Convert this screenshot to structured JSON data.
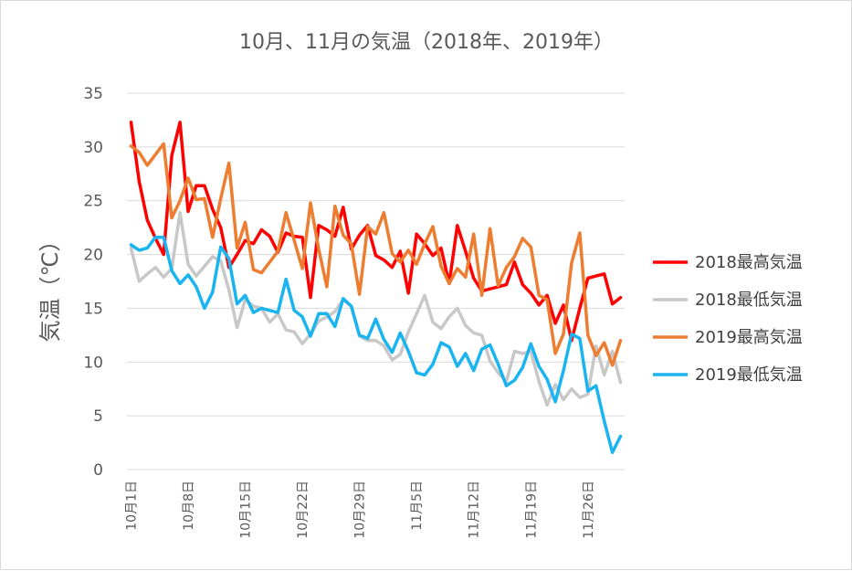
{
  "chart_data": {
    "type": "line",
    "title": "10月、11月の気温（2018年、2019年）",
    "ylabel": "気温（℃）",
    "xlabel": "",
    "ylim": [
      0,
      35
    ],
    "yticks": [
      0,
      5,
      10,
      15,
      20,
      25,
      30,
      35
    ],
    "grid": true,
    "legend_position": "right",
    "category_labels": [
      "10月1日",
      "10月8日",
      "10月15日",
      "10月22日",
      "10月29日",
      "11月5日",
      "11月12日",
      "11月19日",
      "11月26日"
    ],
    "category_label_index": [
      0,
      7,
      14,
      21,
      28,
      35,
      42,
      49,
      56
    ],
    "x": [
      "10/1",
      "10/2",
      "10/3",
      "10/4",
      "10/5",
      "10/6",
      "10/7",
      "10/8",
      "10/9",
      "10/10",
      "10/11",
      "10/12",
      "10/13",
      "10/14",
      "10/15",
      "10/16",
      "10/17",
      "10/18",
      "10/19",
      "10/20",
      "10/21",
      "10/22",
      "10/23",
      "10/24",
      "10/25",
      "10/26",
      "10/27",
      "10/28",
      "10/29",
      "10/30",
      "10/31",
      "11/1",
      "11/2",
      "11/3",
      "11/4",
      "11/5",
      "11/6",
      "11/7",
      "11/8",
      "11/9",
      "11/10",
      "11/11",
      "11/12",
      "11/13",
      "11/14",
      "11/15",
      "11/16",
      "11/17",
      "11/18",
      "11/19",
      "11/20",
      "11/21",
      "11/22",
      "11/23",
      "11/24",
      "11/25",
      "11/26",
      "11/27",
      "11/28",
      "11/29",
      "11/30"
    ],
    "series": [
      {
        "name": "2018最高気温",
        "color": "#ff0000",
        "values": [
          32.3,
          26.8,
          23.2,
          21.5,
          20.0,
          29.2,
          32.3,
          24.0,
          26.4,
          26.4,
          24.2,
          22.5,
          18.8,
          20.0,
          21.3,
          21.0,
          22.3,
          21.7,
          20.2,
          22.0,
          21.7,
          21.6,
          16.0,
          22.7,
          22.3,
          21.7,
          24.4,
          20.5,
          21.8,
          22.7,
          19.9,
          19.5,
          18.8,
          20.3,
          16.4,
          21.9,
          21.0,
          19.9,
          20.6,
          17.3,
          22.7,
          20.3,
          17.8,
          16.6,
          16.8,
          17.0,
          17.2,
          19.3,
          17.2,
          16.4,
          15.3,
          16.2,
          13.6,
          15.3,
          12.0,
          15.0,
          17.8,
          18.0,
          18.2,
          15.4,
          16.0
        ]
      },
      {
        "name": "2018最低気温",
        "color": "#c8c8c8",
        "values": [
          20.6,
          17.5,
          18.2,
          18.8,
          17.9,
          18.7,
          23.9,
          19.1,
          18.0,
          18.9,
          19.8,
          19.4,
          16.7,
          13.2,
          15.8,
          15.2,
          15.0,
          13.7,
          14.5,
          13.0,
          12.8,
          11.7,
          12.6,
          13.8,
          14.2,
          14.7,
          15.8,
          15.2,
          12.4,
          12.0,
          12.0,
          11.5,
          10.2,
          10.7,
          12.8,
          14.5,
          16.2,
          13.7,
          13.1,
          14.2,
          15.0,
          13.4,
          12.7,
          12.5,
          10.1,
          9.0,
          8.2,
          11.0,
          10.8,
          11.0,
          8.2,
          6.0,
          7.9,
          6.5,
          7.5,
          6.7,
          7.0,
          11.5,
          8.8,
          11.0,
          8.1
        ]
      },
      {
        "name": "2019最高気温",
        "color": "#ed7d31",
        "values": [
          30.1,
          29.5,
          28.3,
          29.3,
          30.3,
          23.4,
          25.0,
          27.1,
          25.1,
          25.2,
          21.6,
          25.2,
          28.5,
          20.6,
          23.0,
          18.6,
          18.3,
          19.3,
          20.3,
          23.9,
          21.3,
          18.7,
          24.8,
          20.5,
          17.0,
          24.5,
          21.8,
          21.0,
          16.3,
          22.6,
          21.9,
          23.9,
          20.1,
          19.3,
          20.4,
          19.1,
          21.0,
          22.6,
          18.9,
          17.3,
          18.7,
          17.9,
          21.9,
          16.2,
          22.4,
          17.1,
          18.8,
          19.8,
          21.5,
          20.7,
          16.2,
          15.8,
          10.8,
          12.6,
          19.2,
          22.0,
          12.5,
          10.6,
          11.8,
          9.7,
          12.0
        ]
      },
      {
        "name": "2019最低気温",
        "color": "#1ab4f0",
        "values": [
          20.9,
          20.4,
          20.6,
          21.6,
          21.6,
          18.5,
          17.3,
          18.1,
          17.0,
          15.0,
          16.5,
          20.7,
          19.6,
          15.4,
          16.2,
          14.6,
          15.0,
          14.8,
          14.6,
          17.7,
          14.8,
          14.2,
          12.4,
          14.5,
          14.5,
          13.3,
          15.9,
          15.2,
          12.5,
          12.2,
          14.0,
          12.1,
          10.9,
          12.7,
          11.0,
          9.0,
          8.8,
          9.8,
          11.8,
          11.4,
          9.6,
          10.8,
          9.2,
          11.2,
          11.6,
          9.8,
          7.8,
          8.3,
          9.5,
          11.7,
          9.6,
          8.4,
          6.3,
          9.2,
          12.6,
          12.2,
          7.3,
          7.8,
          4.5,
          1.6,
          3.1
        ]
      }
    ]
  }
}
